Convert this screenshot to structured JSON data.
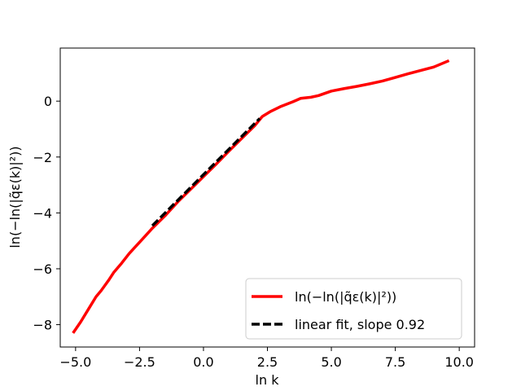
{
  "chart_data": {
    "type": "line",
    "xlabel": "ln k",
    "ylabel": "ln(−ln(|q̃ε(k)|²))",
    "xlim": [
      -5.6,
      10.6
    ],
    "ylim": [
      -8.8,
      1.9
    ],
    "xticks": [
      -5.0,
      -2.5,
      0.0,
      2.5,
      5.0,
      7.5,
      10.0
    ],
    "xtick_labels": [
      "−5.0",
      "−2.5",
      "0.0",
      "2.5",
      "5.0",
      "7.5",
      "10.0"
    ],
    "yticks": [
      -8,
      -6,
      -4,
      -2,
      0
    ],
    "ytick_labels": [
      "−8",
      "−6",
      "−4",
      "−2",
      "0"
    ],
    "grid": false,
    "legend_position": "lower-right",
    "series": [
      {
        "name": "ln(−ln(|q̃ε(k)|²))",
        "color": "#ff0000",
        "style": "solid",
        "x": [
          -5.1,
          -4.8,
          -4.5,
          -4.2,
          -4.0,
          -3.7,
          -3.5,
          -3.2,
          -2.9,
          -2.6,
          -2.3,
          -2.0,
          -1.5,
          -1.0,
          -0.5,
          0.0,
          0.5,
          1.0,
          1.5,
          2.0,
          2.3,
          2.6,
          3.0,
          3.5,
          3.8,
          4.2,
          4.5,
          5.0,
          5.5,
          6.0,
          6.5,
          7.0,
          7.5,
          8.0,
          8.5,
          9.0,
          9.6
        ],
        "y": [
          -8.3,
          -7.9,
          -7.45,
          -7.0,
          -6.78,
          -6.4,
          -6.12,
          -5.8,
          -5.45,
          -5.15,
          -4.85,
          -4.55,
          -4.1,
          -3.6,
          -3.15,
          -2.7,
          -2.25,
          -1.78,
          -1.33,
          -0.88,
          -0.55,
          -0.38,
          -0.2,
          -0.02,
          0.1,
          0.14,
          0.2,
          0.36,
          0.45,
          0.53,
          0.62,
          0.72,
          0.85,
          0.98,
          1.1,
          1.22,
          1.45
        ]
      },
      {
        "name": "linear fit, slope 0.92",
        "color": "#000000",
        "style": "dashed",
        "x": [
          -2.0,
          2.2
        ],
        "y": [
          -4.46,
          -0.62
        ]
      }
    ]
  }
}
